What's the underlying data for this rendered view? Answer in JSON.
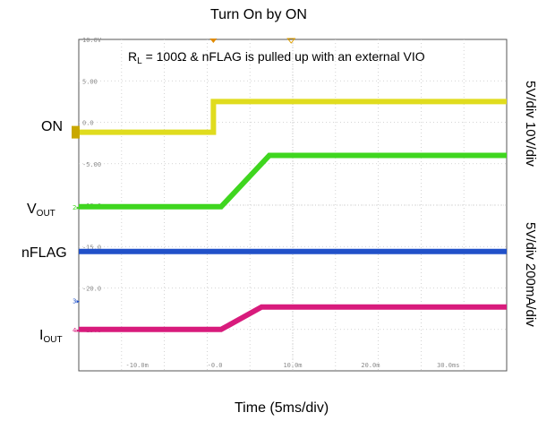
{
  "chart_data": {
    "type": "line",
    "title": "Turn On by ON",
    "xlabel": "Time (5ms/div)",
    "annotation": "R_L = 100Ω & nFLAG is pulled up with an external VIO",
    "annotation_main": "R",
    "annotation_sub": "L",
    "annotation_rest": " = 100Ω & nFLAG is pulled up with an external VIO",
    "screen_ylabels": [
      "10.0V",
      "5.00",
      "0.0",
      "-5.00",
      "-10.0",
      "-15.0",
      "-20.0",
      "-25.0"
    ],
    "screen_xlabels": [
      "-10.0m",
      "-0.0",
      "10.0m",
      "20.0m",
      "30.0ms"
    ],
    "xlim": [
      -17.5,
      37.5
    ],
    "ylim": [
      -30,
      10
    ],
    "grid": true,
    "series": [
      {
        "name": "ON",
        "color": "#e0dc1e",
        "x": [
          -17.5,
          -0.2,
          -0.2,
          37.5
        ],
        "y": [
          -1.2,
          -1.2,
          2.5,
          2.5
        ]
      },
      {
        "name": "VOUT",
        "color": "#3fd61f",
        "x": [
          -17.5,
          0.8,
          7.0,
          37.5
        ],
        "y": [
          -10.2,
          -10.2,
          -4.0,
          -4.0
        ]
      },
      {
        "name": "nFLAG",
        "color": "#2151c9",
        "x": [
          -17.5,
          37.5
        ],
        "y": [
          -15.6,
          -15.6
        ]
      },
      {
        "name": "IOUT",
        "color": "#d81b7c",
        "x": [
          -17.5,
          0.8,
          6.0,
          37.5
        ],
        "y": [
          -25.0,
          -25.0,
          -22.3,
          -22.3
        ]
      }
    ],
    "channel_labels": [
      {
        "main": "ON",
        "sub": ""
      },
      {
        "main": "V",
        "sub": "OUT"
      },
      {
        "main": "nFLAG",
        "sub": ""
      },
      {
        "main": "I",
        "sub": "OUT"
      }
    ],
    "right_labels": [
      "5V/div 10V/div",
      "5V/div 200mA/div"
    ]
  }
}
